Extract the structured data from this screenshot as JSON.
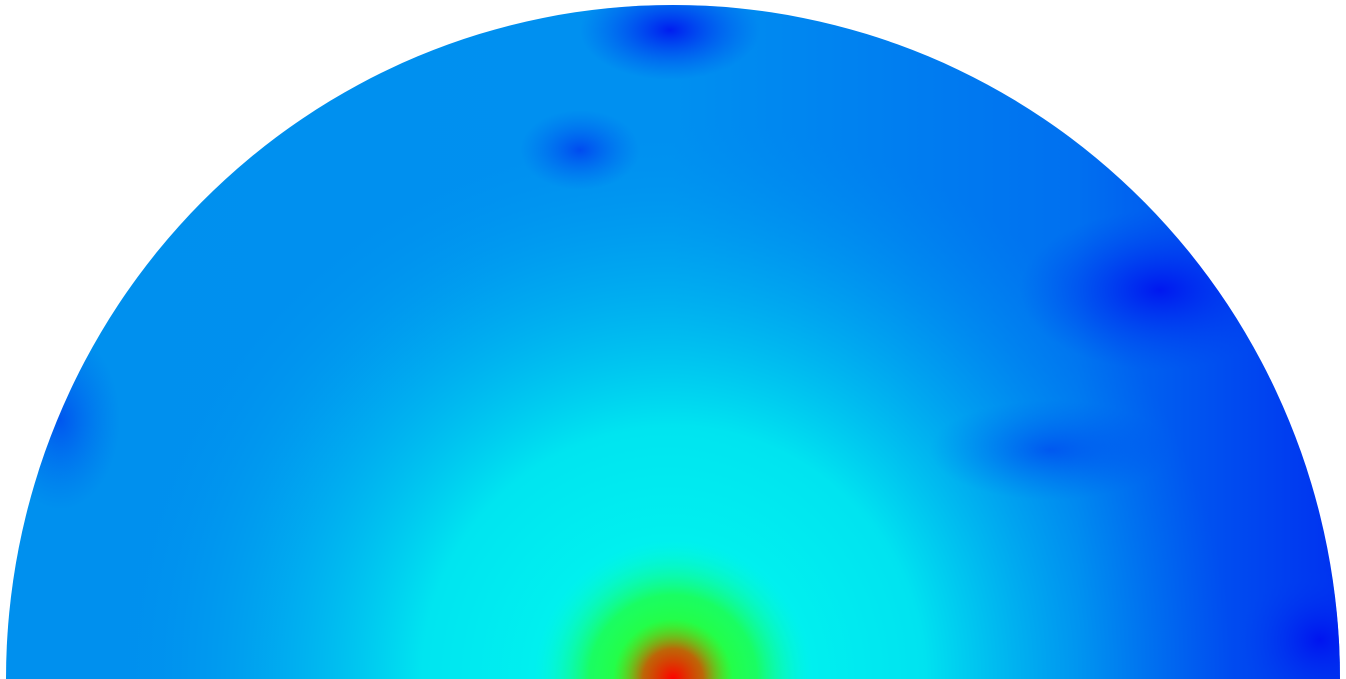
{
  "field_plot": {
    "shape": "semicircle",
    "colors": {
      "background": "#ffffff",
      "low": "#0010f0",
      "base": "#0088ee",
      "mid": "#00f0f0",
      "high_mid": "#20ff20",
      "peak": "#ff1000"
    }
  }
}
